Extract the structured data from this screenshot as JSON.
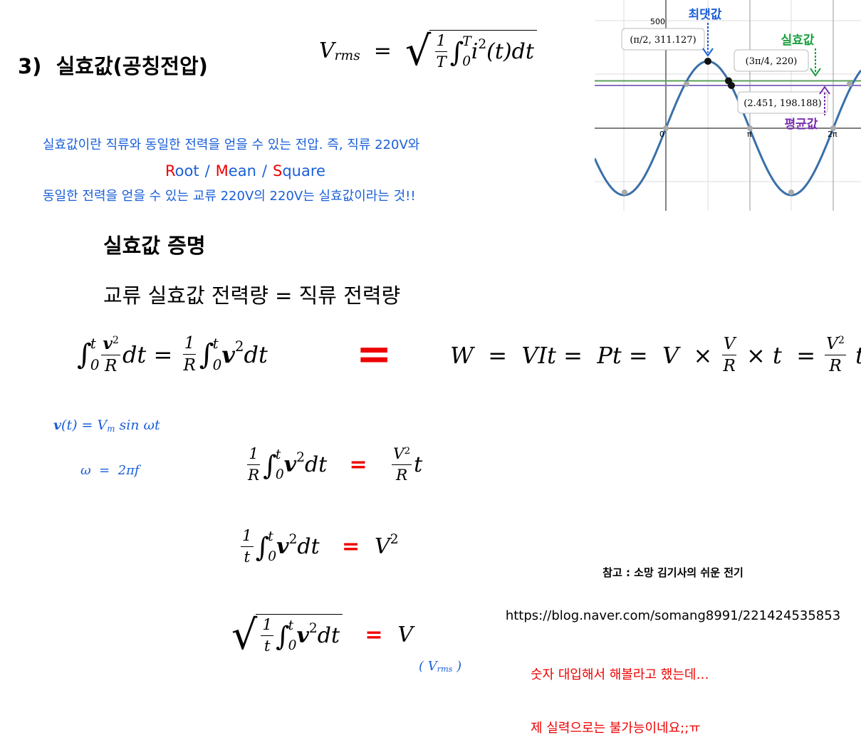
{
  "title": "3)  실효값(공칭전압)",
  "rms_formula": [
    "V",
    {
      "sub": "rms"
    },
    "  =  ",
    {
      "sqrt": [
        {
          "num": [
            "1"
          ],
          "den": [
            "T"
          ]
        },
        {
          "int": "∫",
          "lo": "0",
          "hi": "T"
        },
        "i",
        {
          "sup": "2"
        },
        "(t)dt"
      ]
    }
  ],
  "description": [
    "실효값이란 직류와 동일한 전력을 얻을 수 있는 전압. 즉, 직류 220V와",
    "동일한 전력을 얻을 수 있는 교류 220V의 220V는 실효값이라는 것!!"
  ],
  "acronym": {
    "words": [
      {
        "initial": "R",
        "rest": "oot"
      },
      {
        "initial": "M",
        "rest": "ean"
      },
      {
        "initial": "S",
        "rest": "quare"
      }
    ],
    "separator": "/"
  },
  "graph": {
    "y_tick": "500",
    "origin": "0",
    "x_ticks": [
      "π",
      "2π"
    ],
    "max_label": "최댓값",
    "max_point": "(π/2, 311.127)",
    "rms_label": "실효값",
    "rms_point": "(3π/4, 220)",
    "avg_label": "평균값",
    "avg_point": "(2.451, 198.188)"
  },
  "proof_heading": "실효값 증명",
  "proof_statement": "교류 실효값 전력량 = 직류 전력량",
  "formulas": {
    "eq1": [
      {
        "int": "∫",
        "lo": "0",
        "hi": "t"
      },
      {
        "num": [
          {
            "b": "v"
          },
          {
            "sup": "2"
          }
        ],
        "den": [
          "R"
        ]
      },
      "dt = ",
      {
        "num": [
          "1"
        ],
        "den": [
          "R"
        ]
      },
      {
        "int": "∫",
        "lo": "0",
        "hi": "t"
      },
      {
        "b": "v"
      },
      {
        "sup": "2"
      },
      "dt"
    ],
    "big_equal": "=",
    "eq2": [
      "W  =  VIt =  Pt =  V  × ",
      {
        "num": [
          "V"
        ],
        "den": [
          "R"
        ]
      },
      " × t  = ",
      {
        "num": [
          "V",
          {
            "sup": "2"
          }
        ],
        "den": [
          "R"
        ]
      },
      " t"
    ],
    "vt": [
      {
        "b": "v"
      },
      "(t) = V",
      {
        "sub": "m"
      },
      " sin ωt"
    ],
    "omega": [
      "ω  =  2πf"
    ],
    "eq3": [
      {
        "num": [
          "1"
        ],
        "den": [
          "R"
        ]
      },
      {
        "int": "∫",
        "lo": "0",
        "hi": "t"
      },
      {
        "b": "v"
      },
      {
        "sup": "2"
      },
      "dt",
      {
        "red": "   =   "
      },
      {
        "num": [
          "V",
          {
            "sup": "2"
          }
        ],
        "den": [
          "R"
        ]
      },
      "t"
    ],
    "eq4": [
      {
        "num": [
          "1"
        ],
        "den": [
          "t"
        ]
      },
      {
        "int": "∫",
        "lo": "0",
        "hi": "t"
      },
      {
        "b": "v"
      },
      {
        "sup": "2"
      },
      "dt",
      {
        "red": "   =  "
      },
      "V",
      {
        "sup": "2"
      }
    ],
    "eq5": [
      {
        "sqrt": [
          {
            "num": [
              "1"
            ],
            "den": [
              "t"
            ]
          },
          {
            "int": "∫",
            "lo": "0",
            "hi": "t"
          },
          {
            "b": "v"
          },
          {
            "sup": "2"
          },
          "dt"
        ]
      },
      {
        "red": "   =  "
      },
      "V"
    ],
    "vrms_note": [
      "( ",
      "V",
      {
        "sub": "rms"
      },
      " )"
    ]
  },
  "reference": {
    "title": "참고 : 소망 김기사의 쉬운 전기",
    "url": "https://blog.naver.com/somang8991/221424535853"
  },
  "note": [
    "숫자 대입해서 해볼라고 했는데…",
    "제 실력으로는 불가능이네요;;ㅠ"
  ]
}
